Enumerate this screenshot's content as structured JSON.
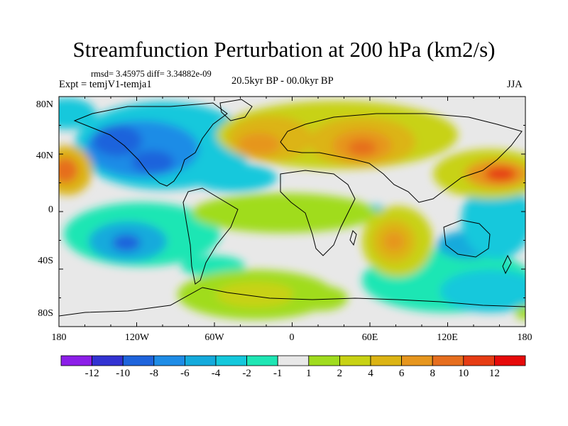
{
  "title": "Streamfunction Perturbation at 200 hPa (km2/s)",
  "stats_line": "rmsd= 3.45975  diff= 3.34882e-09",
  "experiment": "Expt = temjV1-temja1",
  "period": "20.5kyr BP - 00.0kyr BP",
  "season": "JJA",
  "y_ticks": [
    "80N",
    "40N",
    "0",
    "40S",
    "80S"
  ],
  "x_ticks": [
    "180",
    "120W",
    "60W",
    "0",
    "60E",
    "120E",
    "180"
  ],
  "colorbar": {
    "labels": [
      "-12",
      "-10",
      "-8",
      "-6",
      "-4",
      "-2",
      "-1",
      "1",
      "2",
      "4",
      "6",
      "8",
      "10",
      "12"
    ],
    "colors": [
      "#8c1ee8",
      "#3232d2",
      "#1e64dc",
      "#1e8ce6",
      "#14aadc",
      "#14c8dc",
      "#1ee6b4",
      "#e8e8e8",
      "#a0dc1e",
      "#c8d214",
      "#dcb414",
      "#e6961e",
      "#e66e1e",
      "#e63c14",
      "#e60a0a"
    ]
  },
  "colors": {
    "ocean_neutral": "#e8e8e8",
    "coastline": "#000000"
  }
}
